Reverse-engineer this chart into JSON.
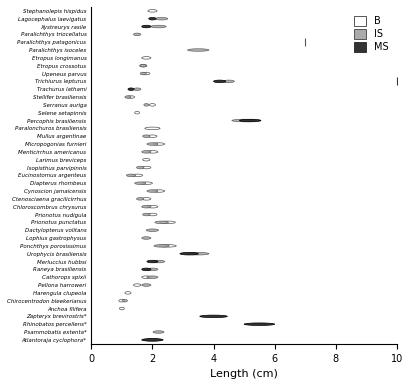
{
  "species": [
    "Stephanolepis hispidus",
    "Lagocephalus laevigatus",
    "Xystreurys rasile",
    "Paralichthys triocellatus",
    "Paralichthys patagonicus",
    "Paralichthys isoceles",
    "Etropus longimanus",
    "Etropus crossotus",
    "Upeneus parvus",
    "Trichiurus lepturus",
    "Trachurus lathami",
    "Stellifer brasiliensis",
    "Serranus auriga",
    "Selene setapinnis",
    "Percophis brasiliensis",
    "Paralonchuros brasiliensis",
    "Mullus argentinae",
    "Micropogonias furnieri",
    "Menticirrhus americanus",
    "Larimus breviceps",
    "Isopisthus parvipinnis",
    "Eucinostomus argenteus",
    "Diapterus rhombeus",
    "Cynoscion jamaicensis",
    "Ctenosciaena gracilicirrhus",
    "Chloroscombrus chrysurus",
    "Prionotus nudigula",
    "Prionotus punctatus",
    "Dactylopterus volitans",
    "Lophius gastrophysus",
    "Ponchthys porosissimus",
    "Urophycis brasiliensis",
    "Merluccius hubbsi",
    "Raneya brasiliensis",
    "Cathorops spixii",
    "Pellona harroweri",
    "Harengula clupeola",
    "Chirocentrodon bleekerianus",
    "Anchoa filifera",
    "Zapteryx brevirostris*",
    "Rhinobatos percellens*",
    "Psammobatis extenta*",
    "Atlantoraja cyclophora*"
  ],
  "data": [
    {
      "B": [
        2.0,
        0.15
      ],
      "IS": null,
      "MS": null
    },
    {
      "B": null,
      "IS": [
        2.3,
        0.2
      ],
      "MS": [
        2.0,
        0.12
      ]
    },
    {
      "B": null,
      "IS": [
        2.2,
        0.25
      ],
      "MS": [
        1.8,
        0.15
      ]
    },
    {
      "B": null,
      "IS": [
        1.5,
        0.12
      ],
      "MS": null
    },
    {
      "B": null,
      "IS": null,
      "MS": null,
      "outlier_IS": 7.0
    },
    {
      "B": null,
      "IS": [
        3.5,
        0.35
      ],
      "MS": null
    },
    {
      "B": [
        1.8,
        0.15
      ],
      "IS": null,
      "MS": null
    },
    {
      "B": [
        1.7,
        0.12
      ],
      "IS": [
        1.7,
        0.1
      ],
      "MS": null
    },
    {
      "B": [
        1.8,
        0.12
      ],
      "IS": [
        1.7,
        0.1
      ],
      "MS": null
    },
    {
      "B": null,
      "IS": [
        4.5,
        0.18
      ],
      "MS": [
        4.2,
        0.2
      ],
      "outlier_MS": 10.0
    },
    {
      "B": null,
      "IS": [
        1.5,
        0.12
      ],
      "MS": [
        1.3,
        0.1
      ]
    },
    {
      "B": [
        1.3,
        0.12
      ],
      "IS": [
        1.2,
        0.1
      ],
      "MS": null
    },
    {
      "B": [
        2.0,
        0.1
      ],
      "IS": [
        1.8,
        0.08
      ],
      "MS": null
    },
    {
      "B": [
        1.5,
        0.08
      ],
      "IS": null,
      "MS": null
    },
    {
      "B": null,
      "IS": [
        5.0,
        0.4
      ],
      "MS": [
        5.2,
        0.35
      ]
    },
    {
      "B": [
        2.0,
        0.25
      ],
      "IS": null,
      "MS": null
    },
    {
      "B": [
        2.0,
        0.15
      ],
      "IS": [
        1.8,
        0.12
      ],
      "MS": null
    },
    {
      "B": [
        2.2,
        0.2
      ],
      "IS": [
        2.0,
        0.18
      ],
      "MS": null
    },
    {
      "B": [
        2.0,
        0.18
      ],
      "IS": [
        1.8,
        0.15
      ],
      "MS": null
    },
    {
      "B": [
        1.8,
        0.12
      ],
      "IS": null,
      "MS": null
    },
    {
      "B": [
        1.8,
        0.15
      ],
      "IS": [
        1.6,
        0.12
      ],
      "MS": null
    },
    {
      "B": [
        1.5,
        0.18
      ],
      "IS": [
        1.3,
        0.15
      ],
      "MS": null
    },
    {
      "B": [
        1.8,
        0.2
      ],
      "IS": [
        1.6,
        0.18
      ],
      "MS": null
    },
    {
      "B": [
        2.2,
        0.2
      ],
      "IS": [
        2.0,
        0.18
      ],
      "MS": null
    },
    {
      "B": [
        1.8,
        0.15
      ],
      "IS": [
        1.6,
        0.12
      ],
      "MS": null
    },
    {
      "B": [
        2.0,
        0.18
      ],
      "IS": [
        1.8,
        0.15
      ],
      "MS": null
    },
    {
      "B": [
        2.0,
        0.15
      ],
      "IS": [
        1.8,
        0.12
      ],
      "MS": null
    },
    {
      "B": [
        2.5,
        0.25
      ],
      "IS": [
        2.3,
        0.22
      ],
      "MS": null
    },
    {
      "B": null,
      "IS": [
        2.0,
        0.2
      ],
      "MS": null
    },
    {
      "B": null,
      "IS": [
        1.8,
        0.15
      ],
      "MS": null
    },
    {
      "B": [
        2.5,
        0.28
      ],
      "IS": [
        2.3,
        0.25
      ],
      "MS": null
    },
    {
      "B": null,
      "IS": [
        3.5,
        0.35
      ],
      "MS": [
        3.2,
        0.3
      ]
    },
    {
      "B": null,
      "IS": [
        2.2,
        0.2
      ],
      "MS": [
        2.0,
        0.18
      ]
    },
    {
      "B": null,
      "IS": [
        2.0,
        0.18
      ],
      "MS": [
        1.8,
        0.15
      ]
    },
    {
      "B": [
        1.8,
        0.15
      ],
      "IS": [
        2.0,
        0.18
      ],
      "MS": null
    },
    {
      "B": [
        1.5,
        0.12
      ],
      "IS": [
        1.8,
        0.15
      ],
      "MS": null
    },
    {
      "B": [
        1.2,
        0.1
      ],
      "IS": null,
      "MS": null
    },
    {
      "B": [
        1.0,
        0.1
      ],
      "IS": [
        1.1,
        0.08
      ],
      "MS": null
    },
    {
      "B": [
        1.0,
        0.08
      ],
      "IS": null,
      "MS": null
    },
    {
      "B": null,
      "IS": null,
      "MS": [
        4.0,
        0.45
      ]
    },
    {
      "B": null,
      "IS": null,
      "MS": [
        5.5,
        0.5
      ]
    },
    {
      "B": null,
      "IS": [
        2.2,
        0.18
      ],
      "MS": null
    },
    {
      "B": [
        2.0,
        0.3
      ],
      "IS": null,
      "MS": [
        2.0,
        0.35
      ]
    }
  ],
  "xlabel": "Length (cm)",
  "xlim": [
    0,
    10
  ],
  "xticks": [
    0,
    2,
    4,
    6,
    8,
    10
  ],
  "colors": {
    "B": "#ffffff",
    "IS": "#aaaaaa",
    "MS": "#333333"
  },
  "bg_color": "#ffffff"
}
